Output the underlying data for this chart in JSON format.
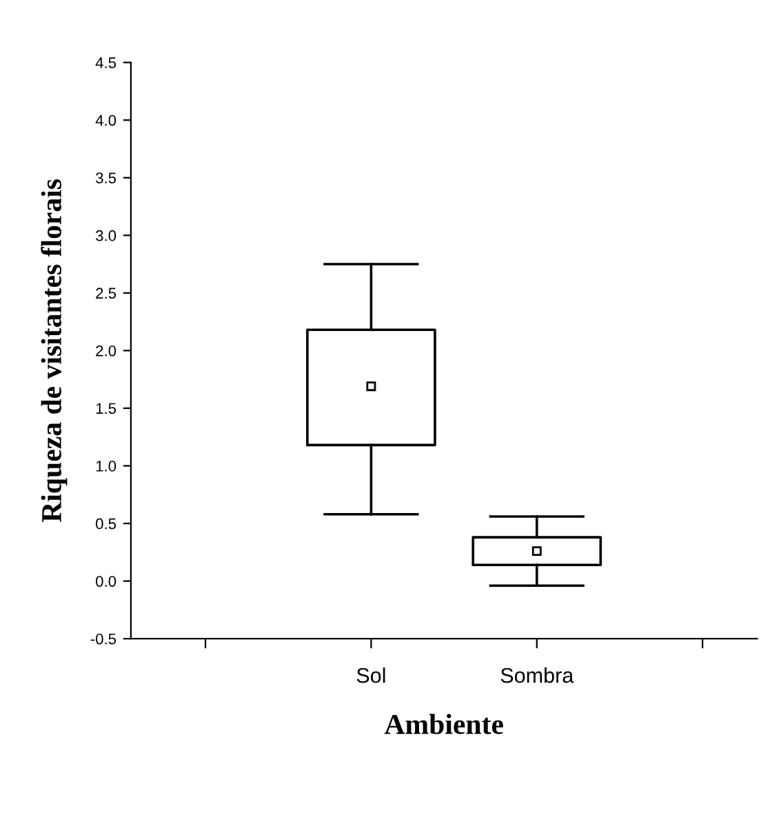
{
  "chart_data": {
    "type": "box",
    "xlabel": "Ambiente",
    "ylabel": "Riqueza de visitantes florais",
    "categories": [
      null,
      "Sol",
      "Sombra",
      null
    ],
    "boxes": [
      null,
      {
        "low": 0.58,
        "q1": 1.18,
        "median": 1.69,
        "q3": 2.18,
        "high": 2.75
      },
      {
        "low": -0.04,
        "q1": 0.14,
        "median": 0.26,
        "q3": 0.38,
        "high": 0.56
      },
      null
    ],
    "ylim": [
      -0.5,
      4.5
    ],
    "yticks": [
      {
        "value": -0.5,
        "label": "-0.5"
      },
      {
        "value": 0,
        "label": "0.0"
      },
      {
        "value": 0.5,
        "label": "0.5"
      },
      {
        "value": 1,
        "label": "1.0"
      },
      {
        "value": 1.5,
        "label": "1.5"
      },
      {
        "value": 2,
        "label": "2.0"
      },
      {
        "value": 2.5,
        "label": "2.5"
      },
      {
        "value": 3,
        "label": "3.0"
      },
      {
        "value": 3.5,
        "label": "3.5"
      },
      {
        "value": 4,
        "label": "4.0"
      },
      {
        "value": 4.5,
        "label": "4.5"
      }
    ],
    "grid": false,
    "legend": false
  }
}
